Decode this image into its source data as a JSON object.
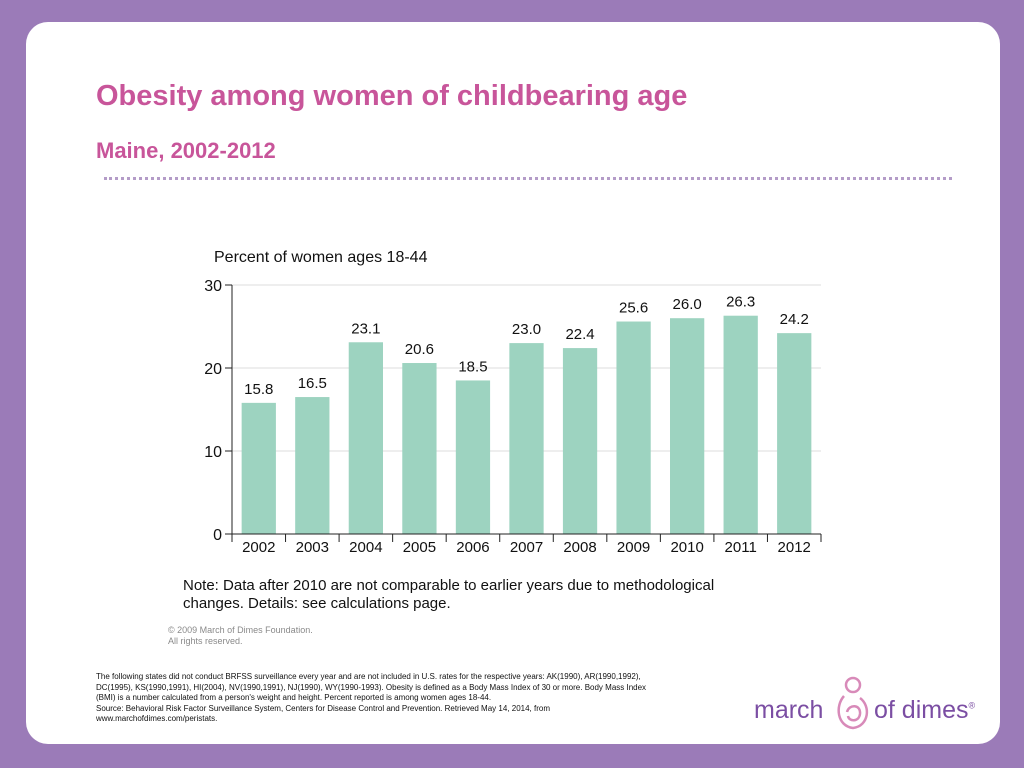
{
  "slide": {
    "title": "Obesity among women of childbearing age",
    "subtitle": "Maine, 2002-2012",
    "note_line1": "Note: Data after 2010 are not comparable to earlier years due to methodological",
    "note_line2": "changes. Details: see calculations page.",
    "copyright_line1": "© 2009 March of Dimes Foundation.",
    "copyright_line2": "All rights reserved.",
    "footnote_line1": "The following states did not conduct BRFSS surveillance every year and are not included in U.S. rates for the respective years: AK(1990), AR(1990,1992), DC(1995), KS(1990,1991), HI(2004), NV(1990,1991), NJ(1990), WY(1990-1993). Obesity is defined as a Body Mass Index of 30 or more. Body Mass Index (BMI) is a number calculated from a person's weight and height. Percent reported is among women ages 18-44.",
    "footnote_line2": "Source: Behavioral Risk Factor Surveillance System, Centers for Disease Control and Prevention. Retrieved May 14, 2014, from www.marchofdimes.com/peristats.",
    "logo_word1": "march",
    "logo_word2": "of dimes",
    "logo_reg": "®"
  },
  "colors": {
    "bar": "#9dd3c0",
    "title": "#c8559a",
    "logo": "#7b4ea3"
  },
  "chart_data": {
    "type": "bar",
    "ylabel": "Percent of women ages 18-44",
    "categories": [
      "2002",
      "2003",
      "2004",
      "2005",
      "2006",
      "2007",
      "2008",
      "2009",
      "2010",
      "2011",
      "2012"
    ],
    "values": [
      15.8,
      16.5,
      23.1,
      20.6,
      18.5,
      23.0,
      22.4,
      25.6,
      26.0,
      26.3,
      24.2
    ],
    "value_labels": [
      "15.8",
      "16.5",
      "23.1",
      "20.6",
      "18.5",
      "23.0",
      "22.4",
      "25.6",
      "26.0",
      "26.3",
      "24.2"
    ],
    "yticks": [
      "0",
      "10",
      "20",
      "30"
    ],
    "ylim": [
      0,
      30
    ],
    "grid": true,
    "legend": "none"
  }
}
